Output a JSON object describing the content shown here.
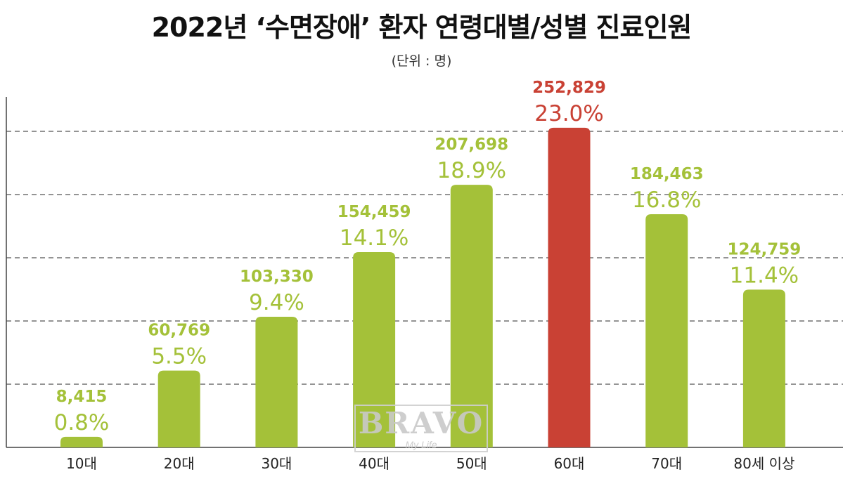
{
  "chart_data": {
    "type": "bar",
    "title": "2022년 ‘수면장애’ 환자 연령대별/성별 진료인원",
    "subtitle": "(단위 : 명)",
    "categories": [
      "10대",
      "20대",
      "30대",
      "40대",
      "50대",
      "60대",
      "70대",
      "80세 이상"
    ],
    "values": [
      8415,
      60769,
      103330,
      154459,
      207698,
      252829,
      184463,
      124759
    ],
    "value_labels": [
      "8,415",
      "60,769",
      "103,330",
      "154,459",
      "207,698",
      "252,829",
      "184,463",
      "124,759"
    ],
    "percent_labels": [
      "0.8%",
      "5.5%",
      "9.4%",
      "14.1%",
      "18.9%",
      "23.0%",
      "16.8%",
      "11.4%"
    ],
    "highlight_index": 5,
    "ylim": [
      0,
      250000
    ],
    "grid": "horizontal-dashed",
    "colors": {
      "default_bar": "#a4c139",
      "highlight_bar": "#c94134",
      "default_label": "#a4c139",
      "highlight_label": "#c94134",
      "grid": "#555555",
      "axis": "#444444"
    }
  },
  "watermark": {
    "main": "BRAVO",
    "sub": "My Life"
  }
}
